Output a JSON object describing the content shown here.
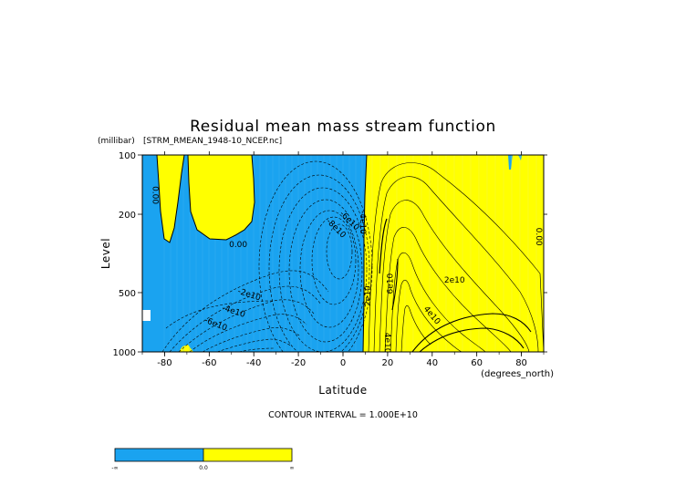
{
  "chart_data": {
    "type": "contour",
    "title": "Residual mean mass stream function",
    "dataset_label": "[STRM_RMEAN_1948-10_NCEP.nc]",
    "xlabel": "Latitude",
    "x_units": "(degrees_north)",
    "ylabel": "Level",
    "y_units": "(millibar)",
    "xlim": [
      -90,
      90
    ],
    "ylim": [
      1000,
      100
    ],
    "y_scale": "log",
    "x_ticks": [
      -80,
      -60,
      -40,
      -20,
      0,
      20,
      40,
      60,
      80
    ],
    "x_tick_labels": [
      "-80",
      "-60",
      "-40",
      "-20",
      "0",
      "20",
      "40",
      "60",
      "80"
    ],
    "y_ticks": [
      100,
      200,
      500,
      1000
    ],
    "y_tick_labels": [
      "100",
      "200",
      "500",
      "1000"
    ],
    "contour_interval_text": "CONTOUR INTERVAL = 1.000E+10",
    "contour_interval": 10000000000.0,
    "fill_colors": {
      "negative": "#1aa3f0",
      "positive": "#ffff00"
    },
    "contour_labels": [
      {
        "text": "0.00",
        "lat": -84,
        "lev": 160,
        "rot": 90
      },
      {
        "text": "0.00",
        "lat": 88,
        "lev": 260,
        "rot": 90
      },
      {
        "text": "0.00",
        "lat": -47,
        "lev": 285,
        "rot": 0
      },
      {
        "text": "-2e10",
        "lat": -42,
        "lev": 510,
        "rot": 18
      },
      {
        "text": "-4e10",
        "lat": -49,
        "lev": 620,
        "rot": 18
      },
      {
        "text": "-6e10",
        "lat": -57,
        "lev": 720,
        "rot": 22
      },
      {
        "text": "-8e10",
        "lat": -3,
        "lev": 235,
        "rot": 45
      },
      {
        "text": "-6e10",
        "lat": 3,
        "lev": 215,
        "rot": 45
      },
      {
        "text": "-4e10",
        "lat": 9,
        "lev": 220,
        "rot": 90
      },
      {
        "text": "2e10",
        "lat": 11,
        "lev": 520,
        "rot": -90
      },
      {
        "text": "6e10",
        "lat": 21,
        "lev": 450,
        "rot": -90
      },
      {
        "text": "2e10",
        "lat": 50,
        "lev": 430,
        "rot": 0
      },
      {
        "text": "4e10",
        "lat": 40,
        "lev": 650,
        "rot": 50
      },
      {
        "text": "4e10",
        "lat": 20,
        "lev": 900,
        "rot": 90
      }
    ],
    "colorbar": {
      "labels": [
        "-∞",
        "0.0",
        "∞"
      ],
      "colors": [
        "#1aa3f0",
        "#ffff00"
      ]
    }
  }
}
